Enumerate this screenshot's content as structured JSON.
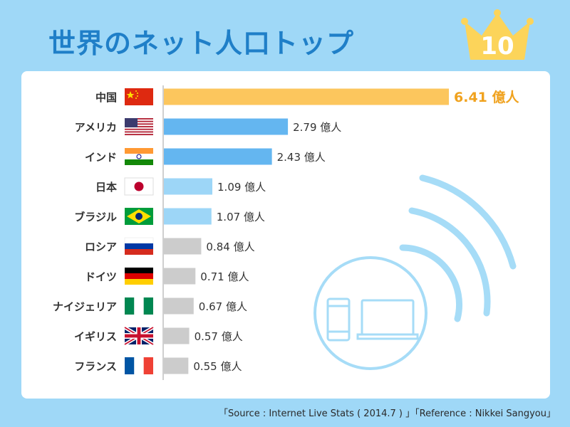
{
  "header": {
    "title": "世界のネット人口トップ",
    "badge": "10"
  },
  "chart_data": {
    "type": "bar",
    "orientation": "horizontal",
    "title": "世界のネット人口トップ",
    "categories": [
      "中国",
      "アメリカ",
      "インド",
      "日本",
      "ブラジル",
      "ロシア",
      "ドイツ",
      "ナイジェリア",
      "イギリス",
      "フランス"
    ],
    "values": [
      6.41,
      2.79,
      2.43,
      1.09,
      1.07,
      0.84,
      0.71,
      0.67,
      0.57,
      0.55
    ],
    "value_labels": [
      "6.41 億人",
      "2.79 億人",
      "2.43 億人",
      "1.09 億人",
      "1.07 億人",
      "0.84 億人",
      "0.71 億人",
      "0.67 億人",
      "0.57 億人",
      "0.55 億人"
    ],
    "unit": "億人",
    "colors": [
      "#fcc65d",
      "#64b6f0",
      "#64b6f0",
      "#9dd6f7",
      "#9dd6f7",
      "#cccccc",
      "#cccccc",
      "#cccccc",
      "#cccccc",
      "#cccccc"
    ],
    "xlim": [
      0,
      6.41
    ],
    "grid": false,
    "legend": "none"
  },
  "flags": [
    "china-flag-icon",
    "usa-flag-icon",
    "india-flag-icon",
    "japan-flag-icon",
    "brazil-flag-icon",
    "russia-flag-icon",
    "germany-flag-icon",
    "nigeria-flag-icon",
    "uk-flag-icon",
    "france-flag-icon"
  ],
  "decoration": {
    "icons": [
      "wifi-signal-icon",
      "smartphone-icon",
      "laptop-icon"
    ]
  },
  "footer": {
    "source": "「Source : Internet Live Stats ( 2014.7 ) 」「Reference : Nikkei Sangyou」"
  }
}
